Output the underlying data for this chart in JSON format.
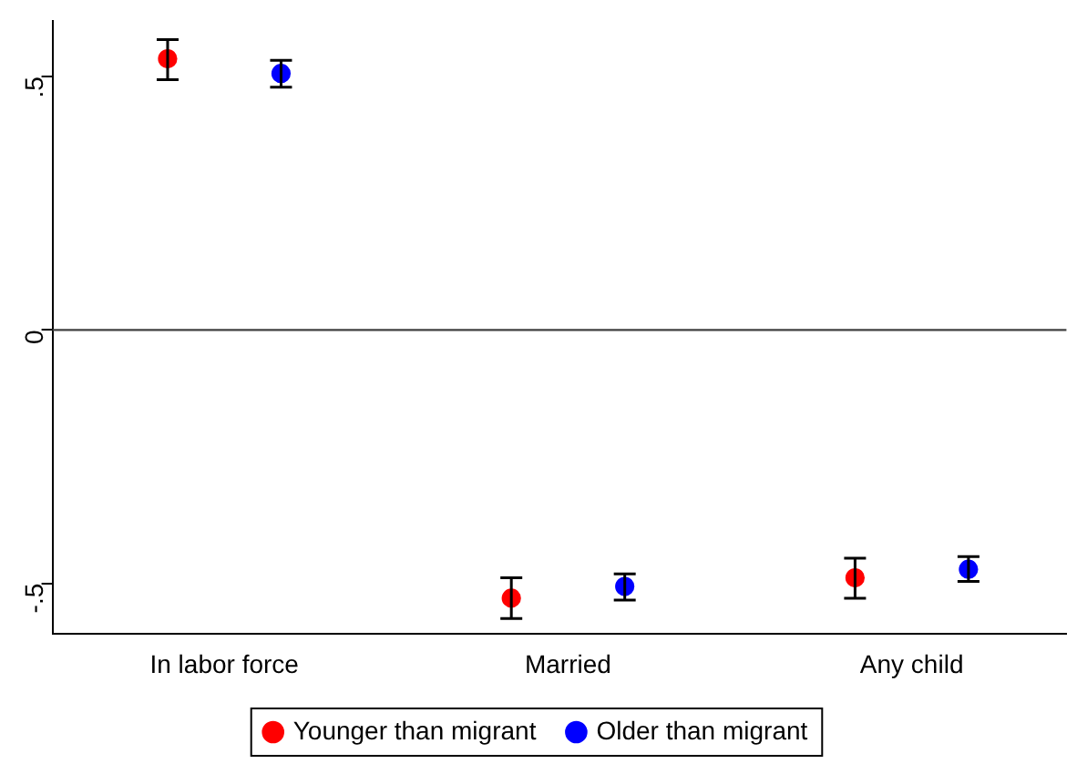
{
  "chart_data": {
    "type": "scatter",
    "categories": [
      "In labor force",
      "Married",
      "Any child"
    ],
    "series": [
      {
        "name": "Younger than migrant",
        "color": "#ff0000",
        "values": [
          0.535,
          -0.529,
          -0.489
        ],
        "errors": [
          [
            0.494,
            0.573
          ],
          [
            -0.569,
            -0.489
          ],
          [
            -0.529,
            -0.45
          ]
        ]
      },
      {
        "name": "Older than migrant",
        "color": "#0000ff",
        "values": [
          0.506,
          -0.506,
          -0.472
        ],
        "errors": [
          [
            0.479,
            0.532
          ],
          [
            -0.533,
            -0.481
          ],
          [
            -0.496,
            -0.447
          ]
        ]
      }
    ],
    "ylim": [
      -0.6,
      0.61
    ],
    "yticks": [
      {
        "value": -0.5,
        "label": "-.5"
      },
      {
        "value": 0,
        "label": "0"
      },
      {
        "value": 0.5,
        "label": ".5"
      }
    ],
    "ref_lines": [
      {
        "axis": "y",
        "value": 0,
        "color": "#404040"
      }
    ],
    "grid": false,
    "legend": "bottom",
    "marker": "circle"
  }
}
